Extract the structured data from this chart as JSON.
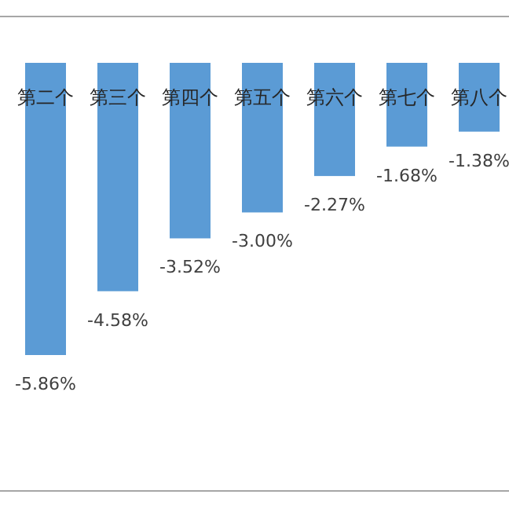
{
  "chart_data": {
    "type": "bar",
    "categories": [
      "第二个",
      "第三个",
      "第四个",
      "第五个",
      "第六个",
      "第七个",
      "第八个"
    ],
    "values": [
      -5.86,
      -4.58,
      -3.52,
      -3.0,
      -2.27,
      -1.68,
      -1.38
    ],
    "value_labels": [
      "-5.86%",
      "-4.58%",
      "-3.52%",
      "-3.00%",
      "-2.27%",
      "-1.68%",
      "-1.38%"
    ],
    "color": "#5b9bd5",
    "relative": false
  }
}
